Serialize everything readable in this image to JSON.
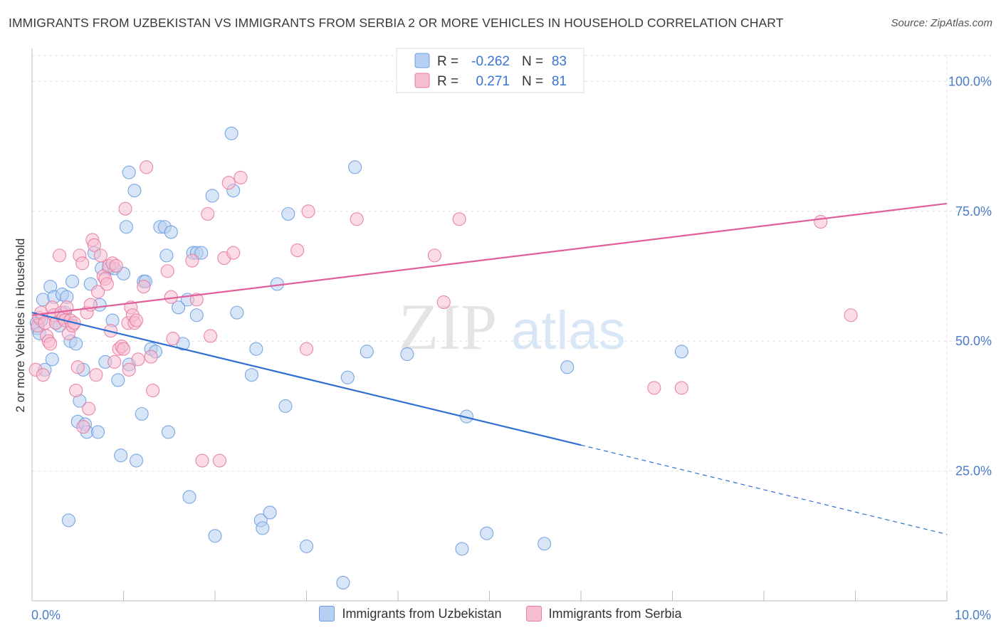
{
  "title": "IMMIGRANTS FROM UZBEKISTAN VS IMMIGRANTS FROM SERBIA 2 OR MORE VEHICLES IN HOUSEHOLD CORRELATION CHART",
  "source": "Source: ZipAtlas.com",
  "watermark": {
    "zip": "ZIP",
    "atlas": "atlas"
  },
  "chart_data": {
    "type": "scatter",
    "ylabel": "2 or more Vehicles in Household",
    "xlim": [
      0,
      10
    ],
    "ylim": [
      0,
      105
    ],
    "x_tick_labels": {
      "left": "0.0%",
      "right": "10.0%"
    },
    "y_ticks": [
      {
        "value": 25,
        "label": "25.0%"
      },
      {
        "value": 50,
        "label": "50.0%"
      },
      {
        "value": 75,
        "label": "75.0%"
      },
      {
        "value": 100,
        "label": "100.0%"
      }
    ],
    "grid": true,
    "legend": {
      "placement": "top-center",
      "entries": [
        {
          "r_label": "R =",
          "r_value": "-0.262",
          "n_label": "N =",
          "n_value": "83"
        },
        {
          "r_label": "R =",
          "r_value": "0.271",
          "n_label": "N =",
          "n_value": "81"
        }
      ]
    },
    "series": [
      {
        "name": "Immigrants from Uzbekistan",
        "color": "#6d9de0",
        "fill": "#b7cff1",
        "trend": {
          "x0": 0,
          "y0": 55.5,
          "x1": 6,
          "y1": 30,
          "dash_to_x": 10,
          "dash_to_y": 12.8
        },
        "points": [
          [
            0.05,
            53.5
          ],
          [
            0.06,
            52.5
          ],
          [
            0.08,
            51.5
          ],
          [
            0.1,
            54
          ],
          [
            0.12,
            58
          ],
          [
            0.14,
            44.5
          ],
          [
            0.2,
            60.5
          ],
          [
            0.22,
            46.5
          ],
          [
            0.24,
            58.5
          ],
          [
            0.26,
            53.5
          ],
          [
            0.3,
            53
          ],
          [
            0.33,
            59
          ],
          [
            0.36,
            55.5
          ],
          [
            0.38,
            58.5
          ],
          [
            0.4,
            15.5
          ],
          [
            0.42,
            50
          ],
          [
            0.44,
            61.5
          ],
          [
            0.48,
            49.5
          ],
          [
            0.5,
            34.5
          ],
          [
            0.52,
            38.5
          ],
          [
            0.56,
            44.5
          ],
          [
            0.58,
            34
          ],
          [
            0.6,
            32.5
          ],
          [
            0.64,
            61
          ],
          [
            0.68,
            67
          ],
          [
            0.72,
            32.5
          ],
          [
            0.74,
            57
          ],
          [
            0.76,
            64
          ],
          [
            0.8,
            46
          ],
          [
            0.84,
            64
          ],
          [
            0.88,
            54
          ],
          [
            0.9,
            64
          ],
          [
            0.94,
            42.5
          ],
          [
            0.97,
            28
          ],
          [
            1.0,
            63
          ],
          [
            1.03,
            72
          ],
          [
            1.06,
            45.5
          ],
          [
            1.06,
            82.5
          ],
          [
            1.12,
            79
          ],
          [
            1.14,
            27
          ],
          [
            1.2,
            36
          ],
          [
            1.22,
            61.5
          ],
          [
            1.24,
            61.5
          ],
          [
            1.3,
            48.5
          ],
          [
            1.35,
            48
          ],
          [
            1.4,
            72
          ],
          [
            1.45,
            72
          ],
          [
            1.47,
            66.5
          ],
          [
            1.49,
            32.5
          ],
          [
            1.52,
            71
          ],
          [
            1.6,
            56.5
          ],
          [
            1.65,
            49.5
          ],
          [
            1.7,
            58
          ],
          [
            1.72,
            20
          ],
          [
            1.76,
            67
          ],
          [
            1.8,
            67
          ],
          [
            1.8,
            55
          ],
          [
            1.85,
            67
          ],
          [
            1.97,
            78
          ],
          [
            2.0,
            12.5
          ],
          [
            2.18,
            90
          ],
          [
            2.2,
            79
          ],
          [
            2.24,
            55.5
          ],
          [
            2.4,
            43.5
          ],
          [
            2.45,
            48.5
          ],
          [
            2.5,
            15.5
          ],
          [
            2.52,
            14
          ],
          [
            2.6,
            17
          ],
          [
            2.68,
            61
          ],
          [
            2.77,
            37.5
          ],
          [
            3.0,
            10.5
          ],
          [
            2.8,
            74.5
          ],
          [
            3.4,
            3.5
          ],
          [
            3.45,
            43
          ],
          [
            3.53,
            83.5
          ],
          [
            3.66,
            48
          ],
          [
            4.1,
            47.5
          ],
          [
            4.7,
            10
          ],
          [
            4.75,
            35.5
          ],
          [
            4.97,
            13
          ],
          [
            5.6,
            11
          ],
          [
            5.85,
            45
          ],
          [
            7.1,
            48
          ]
        ]
      },
      {
        "name": "Immigrants from Serbia",
        "color": "#e77ba0",
        "fill": "#f7bed1",
        "trend": {
          "x0": 0,
          "y0": 55,
          "x1": 10,
          "y1": 76.5
        },
        "points": [
          [
            0.04,
            44.5
          ],
          [
            0.06,
            53
          ],
          [
            0.08,
            54.5
          ],
          [
            0.1,
            55.5
          ],
          [
            0.12,
            43.5
          ],
          [
            0.14,
            53.5
          ],
          [
            0.16,
            51
          ],
          [
            0.18,
            50
          ],
          [
            0.2,
            49.5
          ],
          [
            0.22,
            56.5
          ],
          [
            0.24,
            55
          ],
          [
            0.26,
            53.5
          ],
          [
            0.3,
            66.5
          ],
          [
            0.32,
            55.5
          ],
          [
            0.34,
            54.5
          ],
          [
            0.36,
            54
          ],
          [
            0.38,
            56.5
          ],
          [
            0.4,
            51.5
          ],
          [
            0.42,
            54
          ],
          [
            0.44,
            53
          ],
          [
            0.46,
            53.5
          ],
          [
            0.48,
            40.5
          ],
          [
            0.5,
            45
          ],
          [
            0.52,
            66.5
          ],
          [
            0.55,
            65
          ],
          [
            0.56,
            33.5
          ],
          [
            0.6,
            55.5
          ],
          [
            0.62,
            37
          ],
          [
            0.64,
            57
          ],
          [
            0.66,
            69.5
          ],
          [
            0.68,
            68.5
          ],
          [
            0.7,
            43.5
          ],
          [
            0.72,
            59.5
          ],
          [
            0.75,
            66.5
          ],
          [
            0.78,
            62.5
          ],
          [
            0.8,
            62
          ],
          [
            0.82,
            61
          ],
          [
            0.84,
            64.5
          ],
          [
            0.86,
            52
          ],
          [
            0.88,
            65
          ],
          [
            0.9,
            46
          ],
          [
            0.92,
            64.5
          ],
          [
            0.95,
            48.5
          ],
          [
            0.98,
            49
          ],
          [
            1.0,
            48.5
          ],
          [
            1.02,
            75.5
          ],
          [
            1.05,
            53.5
          ],
          [
            1.06,
            44.5
          ],
          [
            1.08,
            56.5
          ],
          [
            1.1,
            55
          ],
          [
            1.12,
            53.5
          ],
          [
            1.14,
            54
          ],
          [
            1.16,
            46.5
          ],
          [
            1.22,
            60.5
          ],
          [
            1.25,
            83.5
          ],
          [
            1.3,
            47
          ],
          [
            1.32,
            40.5
          ],
          [
            1.48,
            63.5
          ],
          [
            1.52,
            58.5
          ],
          [
            1.54,
            50.5
          ],
          [
            1.75,
            65.5
          ],
          [
            1.8,
            58
          ],
          [
            1.86,
            27
          ],
          [
            1.92,
            74.5
          ],
          [
            1.95,
            51
          ],
          [
            2.05,
            27
          ],
          [
            2.1,
            66
          ],
          [
            2.15,
            80.5
          ],
          [
            2.2,
            67
          ],
          [
            2.28,
            81.5
          ],
          [
            2.9,
            67.5
          ],
          [
            3.0,
            48.5
          ],
          [
            3.02,
            75
          ],
          [
            3.55,
            73.5
          ],
          [
            4.4,
            66.5
          ],
          [
            4.5,
            57.5
          ],
          [
            4.67,
            73.5
          ],
          [
            6.8,
            41
          ],
          [
            7.1,
            41
          ],
          [
            8.62,
            73
          ],
          [
            8.95,
            55
          ]
        ]
      }
    ]
  }
}
